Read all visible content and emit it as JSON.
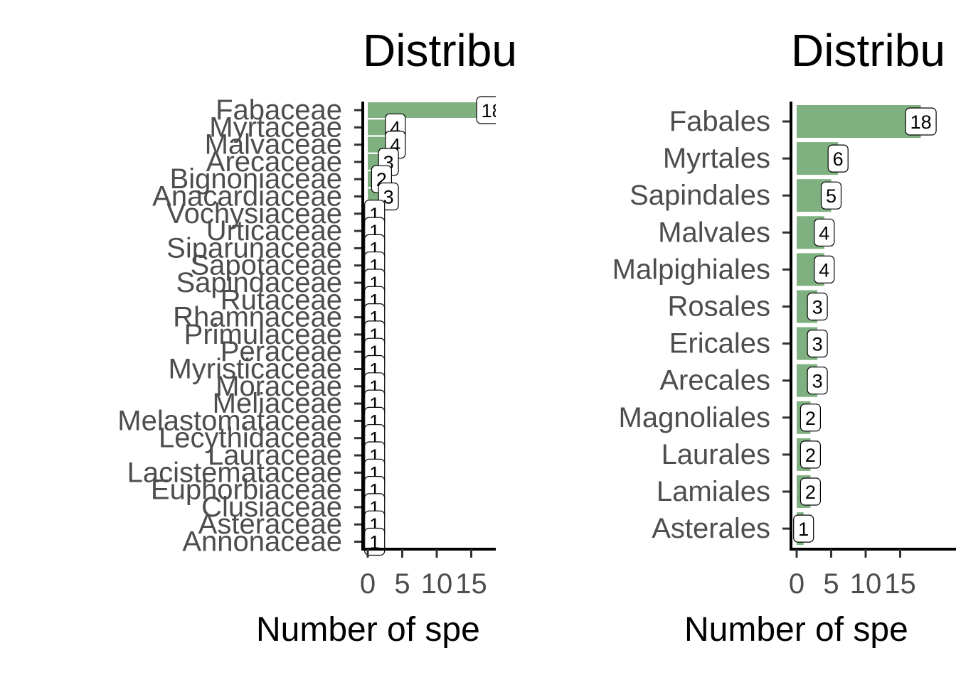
{
  "chart_data": [
    {
      "type": "bar",
      "orientation": "horizontal",
      "title": "Distribu",
      "xlabel": "Number of spe",
      "ylabel": "",
      "xlim": [
        0,
        19
      ],
      "xticks": [
        0,
        5,
        10,
        15
      ],
      "xtick_labels": [
        "0",
        "5",
        "10",
        "15"
      ],
      "grid": false,
      "bar_color": "#7fb07f",
      "categories": [
        "Fabaceae",
        "Myrtaceae",
        "Malvaceae",
        "Arecaceae",
        "Bignoniaceae",
        "Anacardiaceae",
        "Vochysiaceae",
        "Urticaceae",
        "Siparunaceae",
        "Sapotaceae",
        "Sapindaceae",
        "Rutaceae",
        "Rhamnaceae",
        "Primulaceae",
        "Peraceae",
        "Myristicaceae",
        "Moraceae",
        "Meliaceae",
        "Melastomataceae",
        "Lecythidaceae",
        "Lauraceae",
        "Lacistemataceae",
        "Euphorbiaceae",
        "Clusiaceae",
        "Asteraceae",
        "Annonaceae"
      ],
      "values": [
        18,
        4,
        4,
        3,
        2,
        3,
        1,
        1,
        1,
        1,
        1,
        1,
        1,
        1,
        1,
        1,
        1,
        1,
        1,
        1,
        1,
        1,
        1,
        1,
        1,
        1
      ],
      "data_labels": [
        "18",
        "4",
        "4",
        "3",
        "2",
        "3",
        "1",
        "1",
        "1",
        "1",
        "1",
        "1",
        "1",
        "1",
        "1",
        "1",
        "1",
        "1",
        "1",
        "1",
        "1",
        "1",
        "1",
        "1",
        "1",
        "1"
      ]
    },
    {
      "type": "bar",
      "orientation": "horizontal",
      "title": "Distribu",
      "xlabel": "Number of spe",
      "ylabel": "",
      "xlim": [
        0,
        19
      ],
      "xticks": [
        0,
        5,
        10,
        15
      ],
      "xtick_labels": [
        "0",
        "5",
        "10",
        "15"
      ],
      "grid": false,
      "bar_color": "#7fb07f",
      "categories": [
        "Fabales",
        "Myrtales",
        "Sapindales",
        "Malvales",
        "Malpighiales",
        "Rosales",
        "Ericales",
        "Arecales",
        "Magnoliales",
        "Laurales",
        "Lamiales",
        "Asterales"
      ],
      "values": [
        18,
        6,
        5,
        4,
        4,
        3,
        3,
        3,
        2,
        2,
        2,
        1
      ],
      "data_labels": [
        "18",
        "6",
        "5",
        "4",
        "4",
        "3",
        "3",
        "3",
        "2",
        "2",
        "2",
        "1"
      ]
    }
  ]
}
